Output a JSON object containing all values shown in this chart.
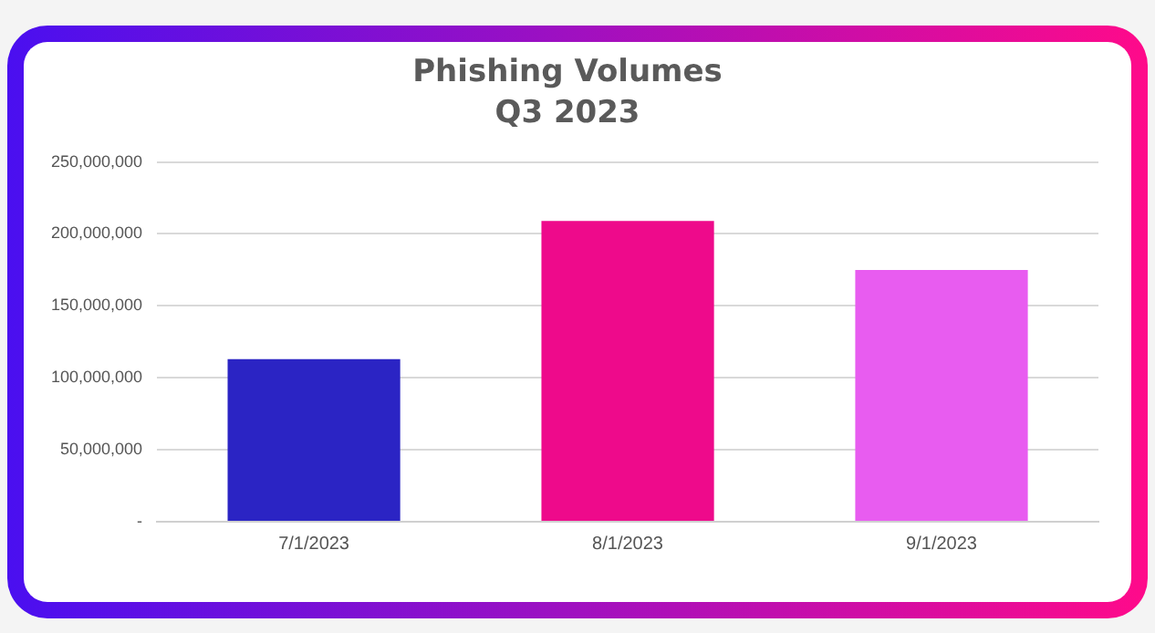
{
  "chart_data": {
    "type": "bar",
    "title": "Phishing Volumes",
    "subtitle": "Q3 2023",
    "categories": [
      "7/1/2023",
      "8/1/2023",
      "9/1/2023"
    ],
    "values": [
      113000000,
      209000000,
      175000000
    ],
    "colors": [
      "#2b24c4",
      "#ee0a8b",
      "#e85cf0"
    ],
    "ylim": [
      0,
      250000000
    ],
    "yticks": [
      {
        "value": 0,
        "label": "-"
      },
      {
        "value": 50000000,
        "label": "50,000,000"
      },
      {
        "value": 100000000,
        "label": "100,000,000"
      },
      {
        "value": 150000000,
        "label": "150,000,000"
      },
      {
        "value": 200000000,
        "label": "200,000,000"
      },
      {
        "value": 250000000,
        "label": "250,000,000"
      }
    ],
    "grid": "y",
    "legend": false
  }
}
